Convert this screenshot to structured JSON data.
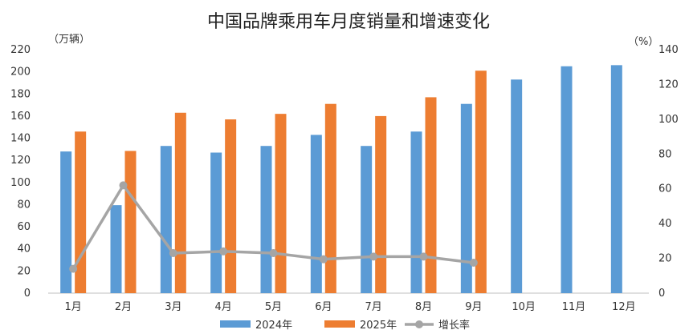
{
  "chart_data": {
    "type": "bar",
    "title": "中国品牌乘用车月度销量和增速变化",
    "left_unit": "（万辆）",
    "right_unit": "（%）",
    "categories": [
      "1月",
      "2月",
      "3月",
      "4月",
      "5月",
      "6月",
      "7月",
      "8月",
      "9月",
      "10月",
      "11月",
      "12月"
    ],
    "ylim": [
      0,
      220
    ],
    "yticks": [
      0,
      20,
      40,
      60,
      80,
      100,
      120,
      140,
      160,
      180,
      200,
      220
    ],
    "y2lim": [
      0,
      140
    ],
    "y2ticks": [
      0,
      20,
      40,
      60,
      80,
      100,
      120,
      140
    ],
    "series": [
      {
        "name": "2024年",
        "kind": "bar",
        "axis": "left",
        "color": "#5b9bd5",
        "values": [
          128,
          79.5,
          133,
          127,
          133,
          143,
          133,
          146,
          171,
          193,
          205,
          206
        ]
      },
      {
        "name": "2025年",
        "kind": "bar",
        "axis": "left",
        "color": "#ed7d31",
        "values": [
          146,
          128.5,
          163,
          157,
          162,
          171,
          160,
          177,
          201,
          null,
          null,
          null
        ]
      },
      {
        "name": "增长率",
        "kind": "line",
        "axis": "right",
        "color": "#a5a5a5",
        "values": [
          14,
          62,
          23,
          24,
          23,
          19.5,
          21,
          21,
          17.5,
          null,
          null,
          null
        ]
      }
    ],
    "legend_position": "bottom",
    "grid": false
  }
}
